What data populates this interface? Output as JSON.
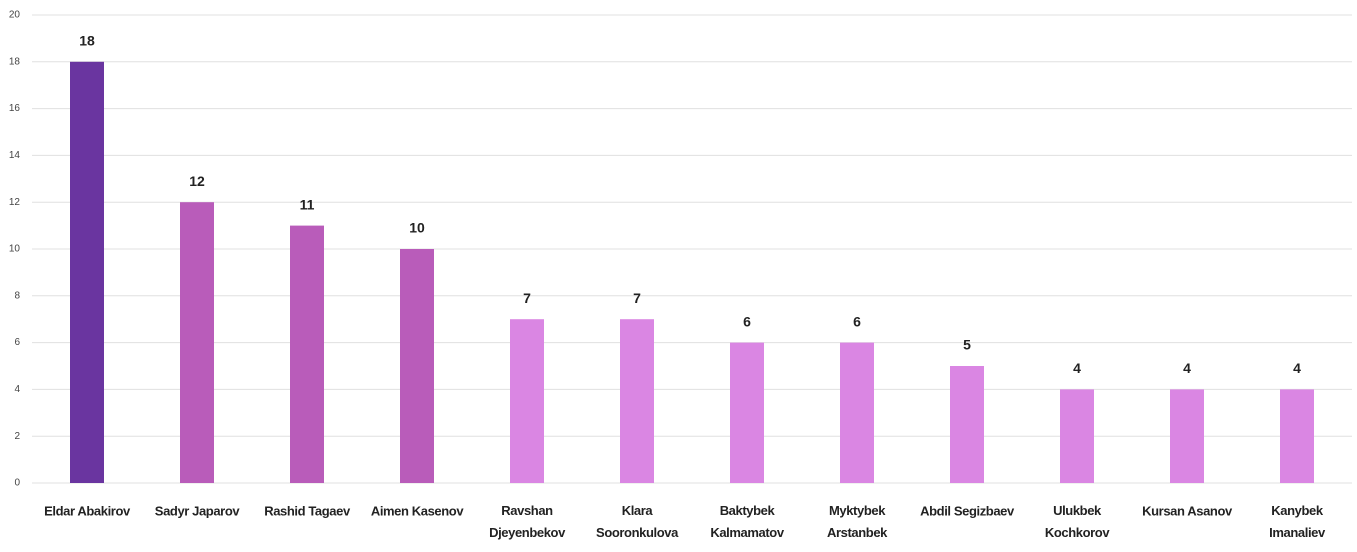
{
  "chart_data": {
    "type": "bar",
    "categories": [
      "Eldar Abakirov",
      "Sadyr Japarov",
      "Rashid Tagaev",
      "Aimen Kasenov",
      "Ravshan\nDjeyenbekov",
      "Klara\nSooronkulova",
      "Baktybek\nKalmamatov",
      "Myktybek\nArstanbek",
      "Abdil Segizbaev",
      "Ulukbek\nKochkorov",
      "Kursan Asanov",
      "Kanybek\nImanaliev"
    ],
    "values": [
      18,
      12,
      11,
      10,
      7,
      7,
      6,
      6,
      5,
      4,
      4,
      4
    ],
    "colors": [
      "#6a35a0",
      "#b95cba",
      "#b95cba",
      "#b95cba",
      "#da86e3",
      "#da86e3",
      "#da86e3",
      "#da86e3",
      "#da86e3",
      "#da86e3",
      "#da86e3",
      "#da86e3"
    ],
    "ylim": [
      0,
      20
    ],
    "yticks": [
      0,
      2,
      4,
      6,
      8,
      10,
      12,
      14,
      16,
      18,
      20
    ],
    "grid": true,
    "data_labels": true
  }
}
